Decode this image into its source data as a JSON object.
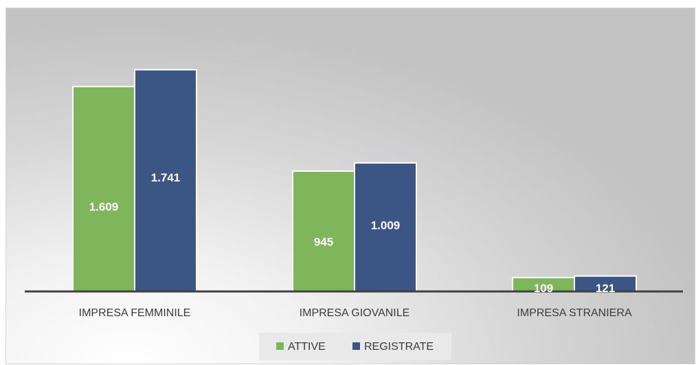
{
  "chart_data": {
    "type": "bar",
    "categories": [
      "IMPRESA FEMMINILE",
      "IMPRESA  GIOVANILE",
      "IMPRESA STRANIERA"
    ],
    "series": [
      {
        "name": "ATTIVE",
        "values": [
          1609,
          945,
          109
        ],
        "labels": [
          "1.609",
          "945",
          "109"
        ]
      },
      {
        "name": "REGISTRATE",
        "values": [
          1741,
          1009,
          121
        ],
        "labels": [
          "1.741",
          "1.009",
          "121"
        ]
      }
    ],
    "ylim": [
      0,
      1900
    ],
    "grid": false,
    "legend_position": "bottom",
    "colors": {
      "ATTIVE": "#7fb55b",
      "REGISTRATE": "#3b5584",
      "axis": "#404040",
      "bar_border": "#ffffff"
    }
  }
}
